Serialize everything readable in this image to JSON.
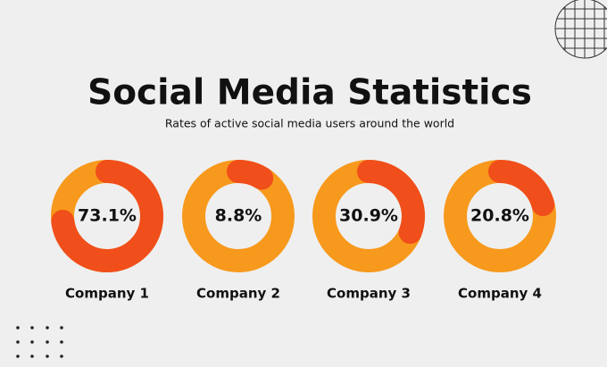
{
  "title": "Social Media Statistics",
  "subtitle": "Rates of active social media users around the world",
  "chart_data": [
    {
      "type": "donut",
      "title": "Company 1",
      "values": [
        73.1
      ],
      "value_labels": [
        "73.1%"
      ],
      "color": "#f04e1b",
      "track_color": "#f7991c"
    },
    {
      "type": "donut",
      "title": "Company 2",
      "values": [
        8.8
      ],
      "value_labels": [
        "8.8%"
      ],
      "color": "#f04e1b",
      "track_color": "#f7991c"
    },
    {
      "type": "donut",
      "title": "Company 3",
      "values": [
        30.9
      ],
      "value_labels": [
        "30.9%"
      ],
      "color": "#f04e1b",
      "track_color": "#f7991c"
    },
    {
      "type": "donut",
      "title": "Company 4",
      "values": [
        20.8
      ],
      "value_labels": [
        "20.8%"
      ],
      "color": "#f04e1b",
      "track_color": "#f7991c"
    }
  ]
}
